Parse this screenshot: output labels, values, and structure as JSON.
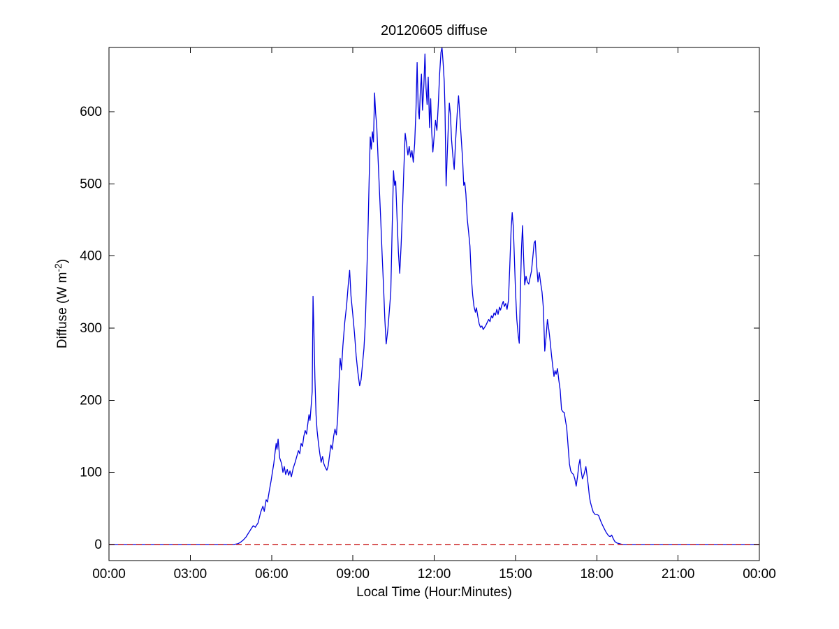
{
  "figure": {
    "background": "#ffffff",
    "axis_color": "#000000"
  },
  "chart_data": {
    "type": "line",
    "title": "20120605 diffuse",
    "xlabel": "Local Time (Hour:Minutes)",
    "ylabel": {
      "prefix": "Diffuse (W m",
      "sup": "-2",
      "suffix": ")"
    },
    "x_unit": "hours_local_time",
    "xlim": [
      0,
      24
    ],
    "ylim": [
      -22.3,
      689
    ],
    "grid": false,
    "legend": "none",
    "xticks": {
      "values": [
        0,
        3,
        6,
        9,
        12,
        15,
        18,
        21,
        24
      ],
      "labels": [
        "00:00",
        "03:00",
        "06:00",
        "09:00",
        "12:00",
        "15:00",
        "18:00",
        "21:00",
        "00:00"
      ]
    },
    "yticks": {
      "values": [
        0,
        100,
        200,
        300,
        400,
        500,
        600
      ],
      "labels": [
        "0",
        "100",
        "200",
        "300",
        "400",
        "500",
        "600"
      ]
    },
    "series": [
      {
        "name": "diffuse",
        "color": "#0000dd",
        "style": "solid",
        "width": 1.3,
        "points": [
          [
            0,
            0
          ],
          [
            0.5,
            0
          ],
          [
            1,
            0
          ],
          [
            1.5,
            0
          ],
          [
            2,
            0
          ],
          [
            2.5,
            0
          ],
          [
            3,
            0
          ],
          [
            3.5,
            0
          ],
          [
            4,
            0
          ],
          [
            4.3,
            0
          ],
          [
            4.6,
            0
          ],
          [
            4.75,
            1
          ],
          [
            4.85,
            3
          ],
          [
            4.95,
            6
          ],
          [
            5.05,
            10
          ],
          [
            5.15,
            16
          ],
          [
            5.25,
            22
          ],
          [
            5.32,
            26
          ],
          [
            5.4,
            24
          ],
          [
            5.5,
            30
          ],
          [
            5.6,
            45
          ],
          [
            5.68,
            53
          ],
          [
            5.73,
            46
          ],
          [
            5.8,
            62
          ],
          [
            5.85,
            59
          ],
          [
            5.92,
            75
          ],
          [
            5.98,
            88
          ],
          [
            6.03,
            100
          ],
          [
            6.08,
            112
          ],
          [
            6.13,
            128
          ],
          [
            6.17,
            140
          ],
          [
            6.2,
            132
          ],
          [
            6.24,
            146
          ],
          [
            6.3,
            120
          ],
          [
            6.37,
            112
          ],
          [
            6.42,
            100
          ],
          [
            6.47,
            108
          ],
          [
            6.52,
            97
          ],
          [
            6.58,
            104
          ],
          [
            6.63,
            96
          ],
          [
            6.68,
            102
          ],
          [
            6.73,
            94
          ],
          [
            6.8,
            106
          ],
          [
            6.87,
            114
          ],
          [
            6.93,
            122
          ],
          [
            6.99,
            130
          ],
          [
            7.04,
            126
          ],
          [
            7.09,
            140
          ],
          [
            7.14,
            136
          ],
          [
            7.19,
            150
          ],
          [
            7.24,
            158
          ],
          [
            7.29,
            153
          ],
          [
            7.34,
            168
          ],
          [
            7.38,
            180
          ],
          [
            7.42,
            172
          ],
          [
            7.46,
            192
          ],
          [
            7.5,
            212
          ],
          [
            7.53,
            344
          ],
          [
            7.56,
            298
          ],
          [
            7.6,
            230
          ],
          [
            7.64,
            180
          ],
          [
            7.68,
            158
          ],
          [
            7.73,
            140
          ],
          [
            7.78,
            126
          ],
          [
            7.83,
            114
          ],
          [
            7.88,
            122
          ],
          [
            7.93,
            112
          ],
          [
            7.98,
            107
          ],
          [
            8.04,
            103
          ],
          [
            8.09,
            109
          ],
          [
            8.14,
            124
          ],
          [
            8.19,
            138
          ],
          [
            8.24,
            132
          ],
          [
            8.29,
            150
          ],
          [
            8.34,
            160
          ],
          [
            8.39,
            152
          ],
          [
            8.44,
            176
          ],
          [
            8.49,
            225
          ],
          [
            8.53,
            258
          ],
          [
            8.58,
            242
          ],
          [
            8.63,
            275
          ],
          [
            8.7,
            308
          ],
          [
            8.77,
            332
          ],
          [
            8.83,
            360
          ],
          [
            8.88,
            380
          ],
          [
            8.93,
            345
          ],
          [
            9.0,
            318
          ],
          [
            9.06,
            292
          ],
          [
            9.12,
            262
          ],
          [
            9.18,
            240
          ],
          [
            9.25,
            220
          ],
          [
            9.3,
            228
          ],
          [
            9.36,
            252
          ],
          [
            9.41,
            272
          ],
          [
            9.46,
            308
          ],
          [
            9.51,
            370
          ],
          [
            9.56,
            435
          ],
          [
            9.6,
            505
          ],
          [
            9.64,
            565
          ],
          [
            9.68,
            548
          ],
          [
            9.72,
            572
          ],
          [
            9.76,
            558
          ],
          [
            9.8,
            626
          ],
          [
            9.84,
            598
          ],
          [
            9.88,
            580
          ],
          [
            9.93,
            535
          ],
          [
            9.98,
            492
          ],
          [
            10.03,
            448
          ],
          [
            10.08,
            402
          ],
          [
            10.13,
            358
          ],
          [
            10.18,
            312
          ],
          [
            10.23,
            278
          ],
          [
            10.29,
            298
          ],
          [
            10.35,
            326
          ],
          [
            10.4,
            350
          ],
          [
            10.45,
            440
          ],
          [
            10.5,
            518
          ],
          [
            10.54,
            498
          ],
          [
            10.58,
            504
          ],
          [
            10.63,
            452
          ],
          [
            10.68,
            405
          ],
          [
            10.73,
            376
          ],
          [
            10.78,
            415
          ],
          [
            10.83,
            462
          ],
          [
            10.88,
            520
          ],
          [
            10.93,
            570
          ],
          [
            10.98,
            556
          ],
          [
            11.03,
            540
          ],
          [
            11.08,
            552
          ],
          [
            11.13,
            537
          ],
          [
            11.18,
            546
          ],
          [
            11.23,
            530
          ],
          [
            11.28,
            556
          ],
          [
            11.33,
            604
          ],
          [
            11.37,
            668
          ],
          [
            11.41,
            606
          ],
          [
            11.45,
            590
          ],
          [
            11.49,
            628
          ],
          [
            11.53,
            652
          ],
          [
            11.57,
            602
          ],
          [
            11.62,
            638
          ],
          [
            11.66,
            680
          ],
          [
            11.7,
            632
          ],
          [
            11.74,
            610
          ],
          [
            11.78,
            648
          ],
          [
            11.83,
            578
          ],
          [
            11.87,
            618
          ],
          [
            11.91,
            572
          ],
          [
            11.95,
            544
          ],
          [
            12.0,
            566
          ],
          [
            12.05,
            588
          ],
          [
            12.1,
            574
          ],
          [
            12.15,
            608
          ],
          [
            12.2,
            652
          ],
          [
            12.25,
            682
          ],
          [
            12.29,
            689
          ],
          [
            12.33,
            668
          ],
          [
            12.37,
            642
          ],
          [
            12.4,
            604
          ],
          [
            12.44,
            497
          ],
          [
            12.48,
            538
          ],
          [
            12.52,
            578
          ],
          [
            12.56,
            612
          ],
          [
            12.6,
            596
          ],
          [
            12.64,
            562
          ],
          [
            12.69,
            538
          ],
          [
            12.74,
            520
          ],
          [
            12.79,
            558
          ],
          [
            12.85,
            598
          ],
          [
            12.9,
            622
          ],
          [
            12.95,
            592
          ],
          [
            13.0,
            562
          ],
          [
            13.05,
            534
          ],
          [
            13.09,
            498
          ],
          [
            13.13,
            502
          ],
          [
            13.17,
            486
          ],
          [
            13.22,
            452
          ],
          [
            13.27,
            433
          ],
          [
            13.32,
            414
          ],
          [
            13.37,
            372
          ],
          [
            13.42,
            346
          ],
          [
            13.47,
            330
          ],
          [
            13.52,
            322
          ],
          [
            13.56,
            328
          ],
          [
            13.61,
            316
          ],
          [
            13.66,
            306
          ],
          [
            13.71,
            301
          ],
          [
            13.76,
            303
          ],
          [
            13.81,
            298
          ],
          [
            13.86,
            301
          ],
          [
            13.91,
            304
          ],
          [
            13.96,
            308
          ],
          [
            14.01,
            312
          ],
          [
            14.06,
            309
          ],
          [
            14.11,
            317
          ],
          [
            14.16,
            314
          ],
          [
            14.21,
            321
          ],
          [
            14.26,
            318
          ],
          [
            14.31,
            326
          ],
          [
            14.36,
            319
          ],
          [
            14.41,
            329
          ],
          [
            14.45,
            325
          ],
          [
            14.5,
            332
          ],
          [
            14.55,
            337
          ],
          [
            14.59,
            330
          ],
          [
            14.64,
            334
          ],
          [
            14.69,
            326
          ],
          [
            14.74,
            338
          ],
          [
            14.79,
            385
          ],
          [
            14.84,
            438
          ],
          [
            14.88,
            460
          ],
          [
            14.92,
            440
          ],
          [
            14.96,
            398
          ],
          [
            15.0,
            352
          ],
          [
            15.05,
            312
          ],
          [
            15.1,
            290
          ],
          [
            15.14,
            279
          ],
          [
            15.18,
            348
          ],
          [
            15.22,
            408
          ],
          [
            15.26,
            442
          ],
          [
            15.3,
            398
          ],
          [
            15.34,
            360
          ],
          [
            15.39,
            372
          ],
          [
            15.44,
            364
          ],
          [
            15.49,
            361
          ],
          [
            15.54,
            370
          ],
          [
            15.59,
            379
          ],
          [
            15.64,
            398
          ],
          [
            15.69,
            418
          ],
          [
            15.73,
            421
          ],
          [
            15.78,
            388
          ],
          [
            15.83,
            364
          ],
          [
            15.88,
            377
          ],
          [
            15.93,
            362
          ],
          [
            15.98,
            350
          ],
          [
            16.03,
            328
          ],
          [
            16.08,
            268
          ],
          [
            16.13,
            288
          ],
          [
            16.18,
            312
          ],
          [
            16.23,
            298
          ],
          [
            16.28,
            282
          ],
          [
            16.33,
            262
          ],
          [
            16.38,
            246
          ],
          [
            16.42,
            233
          ],
          [
            16.46,
            241
          ],
          [
            16.5,
            236
          ],
          [
            16.55,
            244
          ],
          [
            16.6,
            228
          ],
          [
            16.65,
            214
          ],
          [
            16.7,
            187
          ],
          [
            16.75,
            184
          ],
          [
            16.8,
            183
          ],
          [
            16.85,
            171
          ],
          [
            16.89,
            162
          ],
          [
            16.94,
            138
          ],
          [
            16.99,
            112
          ],
          [
            17.04,
            102
          ],
          [
            17.09,
            99
          ],
          [
            17.14,
            97
          ],
          [
            17.19,
            91
          ],
          [
            17.24,
            81
          ],
          [
            17.29,
            94
          ],
          [
            17.34,
            110
          ],
          [
            17.38,
            118
          ],
          [
            17.43,
            101
          ],
          [
            17.47,
            91
          ],
          [
            17.52,
            96
          ],
          [
            17.56,
            102
          ],
          [
            17.6,
            108
          ],
          [
            17.65,
            93
          ],
          [
            17.69,
            81
          ],
          [
            17.73,
            66
          ],
          [
            17.77,
            58
          ],
          [
            17.82,
            51
          ],
          [
            17.87,
            45
          ],
          [
            17.93,
            42
          ],
          [
            18.0,
            42
          ],
          [
            18.07,
            40
          ],
          [
            18.14,
            33
          ],
          [
            18.21,
            27
          ],
          [
            18.29,
            21
          ],
          [
            18.36,
            16
          ],
          [
            18.44,
            12
          ],
          [
            18.5,
            11
          ],
          [
            18.55,
            13
          ],
          [
            18.61,
            8
          ],
          [
            18.67,
            4
          ],
          [
            18.75,
            2
          ],
          [
            18.85,
            1
          ],
          [
            18.95,
            0
          ],
          [
            19.1,
            0
          ],
          [
            19.5,
            0
          ],
          [
            20,
            0
          ],
          [
            20.5,
            0
          ],
          [
            21,
            0
          ],
          [
            21.5,
            0
          ],
          [
            22,
            0
          ],
          [
            22.5,
            0
          ],
          [
            23,
            0
          ],
          [
            23.5,
            0
          ],
          [
            24,
            0
          ]
        ]
      },
      {
        "name": "zero-reference",
        "color": "#cc2222",
        "style": "dashed",
        "width": 1.4,
        "points": [
          [
            0,
            0
          ],
          [
            24,
            0
          ]
        ]
      }
    ]
  }
}
